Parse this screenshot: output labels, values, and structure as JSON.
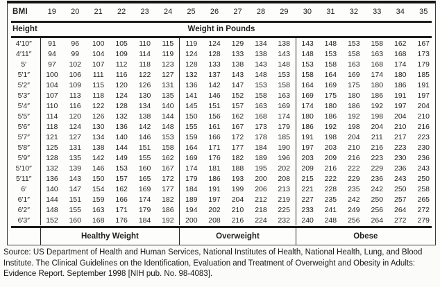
{
  "table": {
    "corner_label": "BMI",
    "bmi_values": [
      "19",
      "20",
      "21",
      "22",
      "23",
      "24",
      "25",
      "26",
      "27",
      "28",
      "29",
      "30",
      "31",
      "32",
      "33",
      "34",
      "35"
    ],
    "height_label": "Height",
    "weight_header": "Weight in Pounds",
    "rows": [
      {
        "height": "4′10″",
        "values": [
          91,
          96,
          100,
          105,
          110,
          115,
          119,
          124,
          129,
          134,
          138,
          143,
          148,
          153,
          158,
          162,
          167
        ]
      },
      {
        "height": "4′11″",
        "values": [
          94,
          99,
          104,
          109,
          114,
          119,
          124,
          128,
          133,
          138,
          143,
          148,
          153,
          158,
          163,
          168,
          173
        ]
      },
      {
        "height": "5′",
        "values": [
          97,
          102,
          107,
          112,
          118,
          123,
          128,
          133,
          138,
          143,
          148,
          153,
          158,
          163,
          168,
          174,
          179
        ]
      },
      {
        "height": "5′1″",
        "values": [
          100,
          106,
          111,
          116,
          122,
          127,
          132,
          137,
          143,
          148,
          153,
          158,
          164,
          169,
          174,
          180,
          185
        ]
      },
      {
        "height": "5′2″",
        "values": [
          104,
          109,
          115,
          120,
          126,
          131,
          136,
          142,
          147,
          153,
          158,
          164,
          169,
          175,
          180,
          186,
          191
        ]
      },
      {
        "height": "5′3″",
        "values": [
          107,
          113,
          118,
          124,
          130,
          135,
          141,
          146,
          152,
          158,
          163,
          169,
          175,
          180,
          186,
          191,
          197
        ]
      },
      {
        "height": "5′4″",
        "values": [
          110,
          116,
          122,
          128,
          134,
          140,
          145,
          151,
          157,
          163,
          169,
          174,
          180,
          186,
          192,
          197,
          204
        ]
      },
      {
        "height": "5′5″",
        "values": [
          114,
          120,
          126,
          132,
          138,
          144,
          150,
          156,
          162,
          168,
          174,
          180,
          186,
          192,
          198,
          204,
          210
        ]
      },
      {
        "height": "5′6″",
        "values": [
          118,
          124,
          130,
          136,
          142,
          148,
          155,
          161,
          167,
          173,
          179,
          186,
          192,
          198,
          204,
          210,
          216
        ]
      },
      {
        "height": "5′7″",
        "values": [
          121,
          127,
          134,
          140,
          146,
          153,
          159,
          166,
          172,
          178,
          185,
          191,
          198,
          204,
          211,
          217,
          223
        ]
      },
      {
        "height": "5′8″",
        "values": [
          125,
          131,
          138,
          144,
          151,
          158,
          164,
          171,
          177,
          184,
          190,
          197,
          203,
          210,
          216,
          223,
          230
        ]
      },
      {
        "height": "5′9″",
        "values": [
          128,
          135,
          142,
          149,
          155,
          162,
          169,
          176,
          182,
          189,
          196,
          203,
          209,
          216,
          223,
          230,
          236
        ]
      },
      {
        "height": "5′10″",
        "values": [
          132,
          139,
          146,
          153,
          160,
          167,
          174,
          181,
          188,
          195,
          202,
          209,
          216,
          222,
          229,
          236,
          243
        ]
      },
      {
        "height": "5′11″",
        "values": [
          136,
          143,
          150,
          157,
          165,
          172,
          179,
          186,
          193,
          200,
          208,
          215,
          222,
          229,
          236,
          243,
          250
        ]
      },
      {
        "height": "6′",
        "values": [
          140,
          147,
          154,
          162,
          169,
          177,
          184,
          191,
          199,
          206,
          213,
          221,
          228,
          235,
          242,
          250,
          258
        ]
      },
      {
        "height": "6′1″",
        "values": [
          144,
          151,
          159,
          166,
          174,
          182,
          189,
          197,
          204,
          212,
          219,
          227,
          235,
          242,
          250,
          257,
          265
        ]
      },
      {
        "height": "6′2″",
        "values": [
          148,
          155,
          163,
          171,
          179,
          186,
          194,
          202,
          210,
          218,
          225,
          233,
          241,
          249,
          256,
          264,
          272
        ]
      },
      {
        "height": "6′3″",
        "values": [
          152,
          160,
          168,
          176,
          184,
          192,
          200,
          208,
          216,
          224,
          232,
          240,
          248,
          256,
          264,
          272,
          279
        ]
      }
    ],
    "categories": [
      {
        "label": "Healthy Weight",
        "span": 6
      },
      {
        "label": "Overweight",
        "span": 5
      },
      {
        "label": "Obese",
        "span": 6
      }
    ]
  },
  "source_note": "Source: US Department of Health and Human Services, National Institutes of Health, National Health, Lung, and Blood Institute. The Clinical Guidelines on the Identification, Evaluation and Treatment of Overweight and Obesity in Adults: Evidence Report. September 1998 [NIH pub. No. 98-4083]."
}
